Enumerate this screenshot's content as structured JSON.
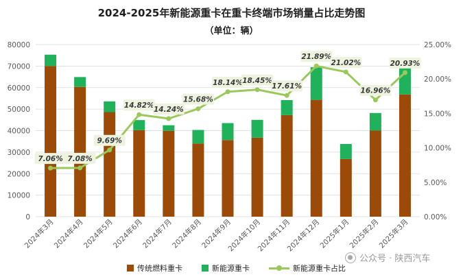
{
  "chart_data": {
    "type": "bar+line",
    "title": "2024-2025年新能源重卡在重卡终端市场销量占比走势图",
    "subtitle": "（单位：辆）",
    "categories": [
      "2024年3月",
      "2024年4月",
      "2024年5月",
      "2024年6月",
      "2024年7月",
      "2024年8月",
      "2024年9月",
      "2024年10月",
      "2024年11月",
      "2024年12月",
      "2025年1月",
      "2025年2月",
      "2025年3月"
    ],
    "series": [
      {
        "name": "传统燃料重卡",
        "type": "bar",
        "stacked": true,
        "color": "#9C4A08",
        "values": [
          70000,
          60300,
          48600,
          40200,
          39900,
          34000,
          35600,
          36700,
          47200,
          54300,
          26800,
          40000,
          56800
        ]
      },
      {
        "name": "新能源重卡",
        "type": "bar",
        "stacked": true,
        "color": "#1FB25A",
        "values": [
          5300,
          4600,
          5000,
          4700,
          2600,
          6300,
          7900,
          8300,
          7000,
          15200,
          7000,
          8200,
          15100
        ]
      },
      {
        "name": "新能源重卡占比",
        "type": "line",
        "axis": "right",
        "color": "#9BC85A",
        "values": [
          7.06,
          7.08,
          9.69,
          14.82,
          14.24,
          15.68,
          18.14,
          18.45,
          17.61,
          21.89,
          21.02,
          16.96,
          20.93
        ],
        "labels": [
          "7.06%",
          "7.08%",
          "9.69%",
          "14.82%",
          "14.24%",
          "15.68%",
          "18.14%",
          "18.45%",
          "17.61%",
          "21.89%",
          "21.02%",
          "16.96%",
          "20.93%"
        ]
      }
    ],
    "y_left": {
      "min": 0,
      "max": 80000,
      "ticks": [
        "0",
        "10000",
        "20000",
        "30000",
        "40000",
        "50000",
        "60000",
        "70000",
        "80000"
      ]
    },
    "y_right": {
      "min": 0,
      "max": 25,
      "ticks": [
        "0.00%",
        "5.00%",
        "10.00%",
        "15.00%",
        "20.00%",
        "25.00%"
      ]
    },
    "legend": [
      "传统燃料重卡",
      "新能源重卡",
      "新能源重卡占比"
    ],
    "legend_position": "bottom"
  },
  "watermark": "公众号 · 陕西汽车",
  "colors": {
    "label_bg": "#EDF3DF",
    "grid": "#D9D9D9",
    "axis_text": "#595959"
  }
}
